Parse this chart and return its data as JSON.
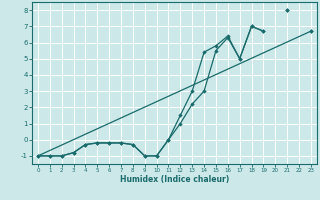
{
  "xlabel": "Humidex (Indice chaleur)",
  "bg_color": "#cce8e8",
  "grid_color": "#ffffff",
  "line_color": "#1a6b6b",
  "xlim": [
    -0.5,
    23.5
  ],
  "ylim": [
    -1.5,
    8.5
  ],
  "xticks": [
    0,
    1,
    2,
    3,
    4,
    5,
    6,
    7,
    8,
    9,
    10,
    11,
    12,
    13,
    14,
    15,
    16,
    17,
    18,
    19,
    20,
    21,
    22,
    23
  ],
  "yticks": [
    -1,
    0,
    1,
    2,
    3,
    4,
    5,
    6,
    7,
    8
  ],
  "line1_x": [
    0,
    1,
    2,
    3,
    4,
    5,
    6,
    7,
    8,
    9,
    10,
    11,
    12,
    13,
    14,
    15,
    16,
    17,
    18,
    19,
    20,
    21,
    22,
    23
  ],
  "line1_y": [
    -1,
    -1,
    -1,
    -0.8,
    -0.3,
    -0.2,
    -0.2,
    -0.2,
    -0.3,
    -1,
    -1,
    0.0,
    1.0,
    2.2,
    3.0,
    5.5,
    6.3,
    5.0,
    7.0,
    6.7,
    null,
    8.0,
    null,
    6.7
  ],
  "line2_x": [
    0,
    1,
    2,
    3,
    4,
    5,
    6,
    7,
    8,
    9,
    10,
    11,
    12,
    13,
    14,
    15,
    16,
    17,
    18,
    19,
    20,
    21,
    22,
    23
  ],
  "line2_y": [
    -1,
    -1,
    -1,
    -0.8,
    -0.3,
    -0.2,
    -0.2,
    -0.2,
    -0.3,
    -1,
    -1,
    0.0,
    1.5,
    3.0,
    5.4,
    5.8,
    6.4,
    5.0,
    7.0,
    6.7,
    null,
    8.0,
    null,
    6.7
  ],
  "line3_x": [
    0,
    23
  ],
  "line3_y": [
    -1,
    6.7
  ]
}
